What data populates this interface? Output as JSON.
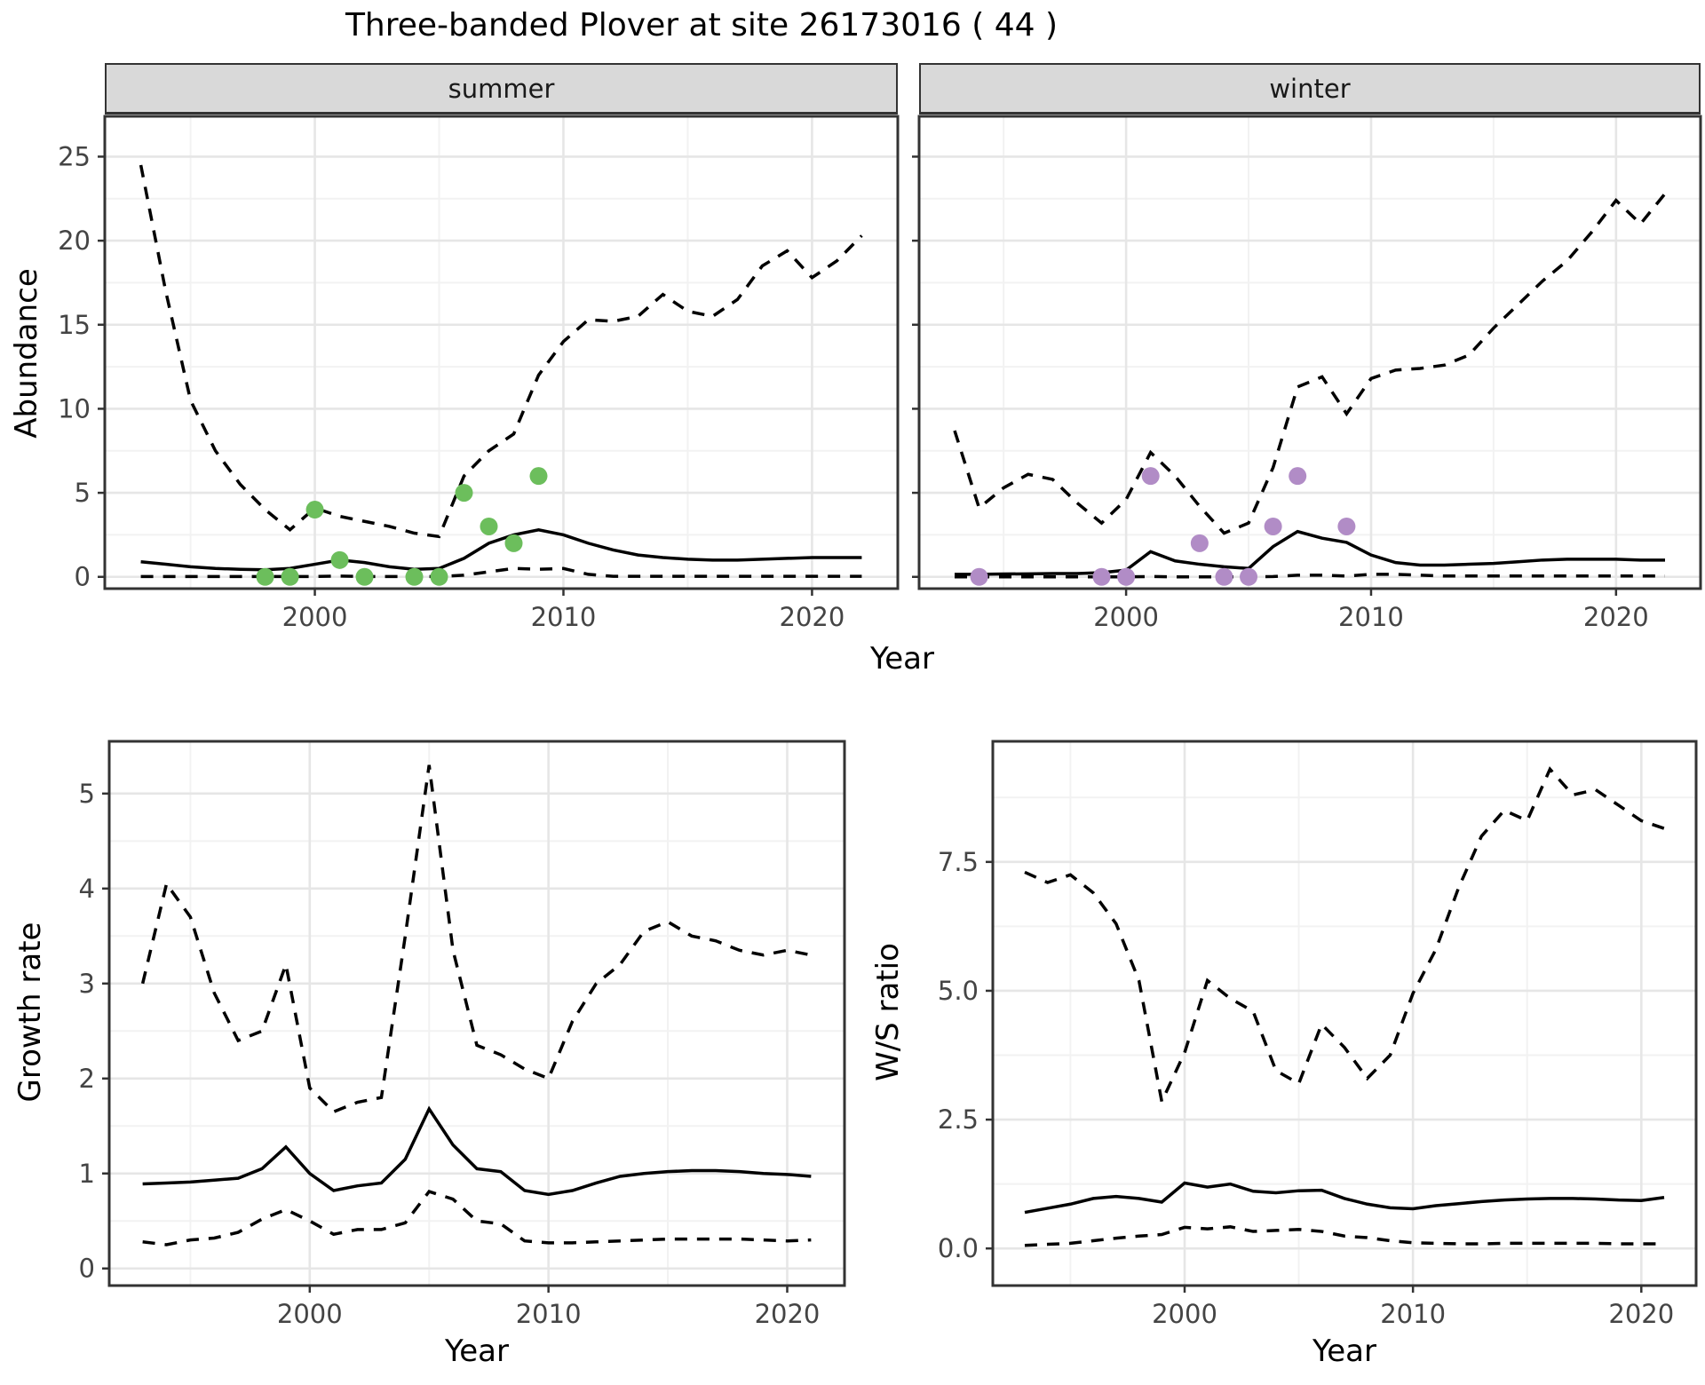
{
  "title": "Three-banded Plover at site 26173016 ( 44 )",
  "shared_x_label": "Year",
  "colors": {
    "summer_points": "#6cbe5c",
    "winter_points": "#b18cc6",
    "line": "#000000",
    "panel_border": "#333333",
    "grid_major": "#e6e6e6",
    "grid_minor": "#f2f2f2",
    "tick_text": "#444444",
    "strip_background": "#d9d9d9"
  },
  "chart_data": [
    {
      "id": "abundance-summer",
      "type": "line",
      "facet_label": "summer",
      "ylabel": "Abundance",
      "xlabel": "Year",
      "legend_position": "none",
      "grid": "on",
      "xlim": [
        1991.55,
        2023.45
      ],
      "ylim": [
        -0.7,
        27.4
      ],
      "x_ticks": [
        {
          "v": 2000,
          "label": "2000"
        },
        {
          "v": 2010,
          "label": "2010"
        },
        {
          "v": 2020,
          "label": "2020"
        }
      ],
      "x_minor": [
        1995,
        2005,
        2015
      ],
      "y_ticks": [
        {
          "v": 0,
          "label": "0"
        },
        {
          "v": 5,
          "label": "5"
        },
        {
          "v": 10,
          "label": "10"
        },
        {
          "v": 15,
          "label": "15"
        },
        {
          "v": 20,
          "label": "20"
        },
        {
          "v": 25,
          "label": "25"
        }
      ],
      "y_minor": [
        2.5,
        7.5,
        12.5,
        17.5,
        22.5
      ],
      "show_y_labels": true,
      "x": [
        1993,
        1994,
        1995,
        1996,
        1997,
        1998,
        1999,
        2000,
        2001,
        2002,
        2003,
        2004,
        2005,
        2006,
        2007,
        2008,
        2009,
        2010,
        2011,
        2012,
        2013,
        2014,
        2015,
        2016,
        2017,
        2018,
        2019,
        2020,
        2021,
        2022
      ],
      "series": [
        {
          "name": "upper-ci",
          "style": "dashed",
          "values": [
            24.5,
            17,
            10.5,
            7.5,
            5.5,
            4.0,
            2.8,
            4.1,
            3.6,
            3.3,
            3.0,
            2.6,
            2.4,
            6.0,
            7.5,
            8.5,
            12.0,
            14.0,
            15.3,
            15.2,
            15.5,
            16.8,
            15.8,
            15.5,
            16.5,
            18.5,
            19.4,
            17.8,
            18.8,
            20.3
          ]
        },
        {
          "name": "lower-ci",
          "style": "dashed",
          "values": [
            0.02,
            0.02,
            0.02,
            0.02,
            0.02,
            0.02,
            0.02,
            0.02,
            0.05,
            0.02,
            0.02,
            0.02,
            0.02,
            0.1,
            0.3,
            0.5,
            0.45,
            0.5,
            0.15,
            0.03,
            0.03,
            0.03,
            0.03,
            0.03,
            0.03,
            0.03,
            0.03,
            0.03,
            0.03,
            0.03
          ]
        },
        {
          "name": "median",
          "style": "solid",
          "values": [
            0.9,
            0.75,
            0.6,
            0.5,
            0.45,
            0.42,
            0.5,
            0.75,
            1.0,
            0.85,
            0.6,
            0.45,
            0.5,
            1.1,
            2.0,
            2.5,
            2.8,
            2.5,
            2.0,
            1.6,
            1.3,
            1.15,
            1.05,
            1.0,
            1.0,
            1.05,
            1.1,
            1.15,
            1.15,
            1.15
          ]
        }
      ],
      "points": {
        "name": "summer-observations",
        "color": "#6cbe5c",
        "data": [
          [
            1998,
            0
          ],
          [
            1999,
            0
          ],
          [
            2000,
            4
          ],
          [
            2001,
            1
          ],
          [
            2002,
            0
          ],
          [
            2004,
            0
          ],
          [
            2005,
            0
          ],
          [
            2006,
            5
          ],
          [
            2007,
            3
          ],
          [
            2008,
            2
          ],
          [
            2009,
            6
          ]
        ]
      }
    },
    {
      "id": "abundance-winter",
      "type": "line",
      "facet_label": "winter",
      "ylabel": "Abundance",
      "xlabel": "Year",
      "legend_position": "none",
      "grid": "on",
      "xlim": [
        1991.55,
        2023.45
      ],
      "ylim": [
        -0.7,
        27.4
      ],
      "x_ticks": [
        {
          "v": 2000,
          "label": "2000"
        },
        {
          "v": 2010,
          "label": "2010"
        },
        {
          "v": 2020,
          "label": "2020"
        }
      ],
      "x_minor": [
        1995,
        2005,
        2015
      ],
      "y_ticks": [
        {
          "v": 0,
          "label": "0"
        },
        {
          "v": 5,
          "label": "5"
        },
        {
          "v": 10,
          "label": "10"
        },
        {
          "v": 15,
          "label": "15"
        },
        {
          "v": 20,
          "label": "20"
        },
        {
          "v": 25,
          "label": "25"
        }
      ],
      "y_minor": [
        2.5,
        7.5,
        12.5,
        17.5,
        22.5
      ],
      "show_y_labels": false,
      "x": [
        1993,
        1994,
        1995,
        1996,
        1997,
        1998,
        1999,
        2000,
        2001,
        2002,
        2003,
        2004,
        2005,
        2006,
        2007,
        2008,
        2009,
        2010,
        2011,
        2012,
        2013,
        2014,
        2015,
        2016,
        2017,
        2018,
        2019,
        2020,
        2021,
        2022
      ],
      "series": [
        {
          "name": "upper-ci",
          "style": "dashed",
          "values": [
            8.7,
            4.1,
            5.3,
            6.1,
            5.8,
            4.4,
            3.2,
            4.6,
            7.4,
            6.0,
            4.2,
            2.6,
            3.2,
            6.5,
            11.3,
            11.9,
            9.7,
            11.8,
            12.3,
            12.4,
            12.6,
            13.2,
            14.8,
            16.2,
            17.6,
            18.8,
            20.5,
            22.4,
            21.0,
            22.8
          ]
        },
        {
          "name": "lower-ci",
          "style": "dashed",
          "values": [
            0,
            0,
            0,
            0,
            0,
            0,
            0,
            0,
            0.02,
            0,
            0,
            0,
            0,
            0.02,
            0.1,
            0.1,
            0.05,
            0.15,
            0.15,
            0.1,
            0.05,
            0.05,
            0.05,
            0.05,
            0.05,
            0.05,
            0.05,
            0.05,
            0.05,
            0.05
          ]
        },
        {
          "name": "median",
          "style": "solid",
          "values": [
            0.15,
            0.15,
            0.17,
            0.18,
            0.2,
            0.2,
            0.25,
            0.4,
            1.5,
            0.95,
            0.75,
            0.6,
            0.5,
            1.8,
            2.7,
            2.3,
            2.05,
            1.3,
            0.85,
            0.7,
            0.7,
            0.75,
            0.8,
            0.9,
            1.0,
            1.05,
            1.05,
            1.05,
            1.0,
            1.0
          ]
        }
      ],
      "points": {
        "name": "winter-observations",
        "color": "#b18cc6",
        "data": [
          [
            1994,
            0
          ],
          [
            1999,
            0
          ],
          [
            2000,
            0
          ],
          [
            2001,
            6
          ],
          [
            2003,
            2
          ],
          [
            2004,
            0
          ],
          [
            2005,
            0
          ],
          [
            2006,
            3
          ],
          [
            2007,
            6
          ],
          [
            2009,
            3
          ]
        ]
      }
    },
    {
      "id": "growth-rate",
      "type": "line",
      "facet_label": "",
      "ylabel": "Growth rate",
      "xlabel": "Year",
      "legend_position": "none",
      "grid": "on",
      "xlim": [
        1991.6,
        2022.4
      ],
      "ylim": [
        -0.18,
        5.55
      ],
      "x_ticks": [
        {
          "v": 2000,
          "label": "2000"
        },
        {
          "v": 2010,
          "label": "2010"
        },
        {
          "v": 2020,
          "label": "2020"
        }
      ],
      "x_minor": [
        1995,
        2005,
        2015
      ],
      "y_ticks": [
        {
          "v": 0,
          "label": "0"
        },
        {
          "v": 1,
          "label": "1"
        },
        {
          "v": 2,
          "label": "2"
        },
        {
          "v": 3,
          "label": "3"
        },
        {
          "v": 4,
          "label": "4"
        },
        {
          "v": 5,
          "label": "5"
        }
      ],
      "y_minor": [
        0.5,
        1.5,
        2.5,
        3.5,
        4.5
      ],
      "show_y_labels": true,
      "x": [
        1993,
        1994,
        1995,
        1996,
        1997,
        1998,
        1999,
        2000,
        2001,
        2002,
        2003,
        2004,
        2005,
        2006,
        2007,
        2008,
        2009,
        2010,
        2011,
        2012,
        2013,
        2014,
        2015,
        2016,
        2017,
        2018,
        2019,
        2020,
        2021
      ],
      "series": [
        {
          "name": "upper-ci",
          "style": "dashed",
          "values": [
            3.0,
            4.05,
            3.7,
            2.9,
            2.4,
            2.5,
            3.2,
            1.9,
            1.65,
            1.75,
            1.8,
            3.5,
            5.3,
            3.35,
            2.35,
            2.25,
            2.1,
            2.0,
            2.6,
            3.0,
            3.2,
            3.55,
            3.65,
            3.5,
            3.45,
            3.35,
            3.3,
            3.35,
            3.3
          ]
        },
        {
          "name": "lower-ci",
          "style": "dashed",
          "values": [
            0.28,
            0.25,
            0.3,
            0.32,
            0.38,
            0.52,
            0.62,
            0.5,
            0.36,
            0.41,
            0.41,
            0.48,
            0.81,
            0.73,
            0.5,
            0.47,
            0.29,
            0.27,
            0.27,
            0.28,
            0.29,
            0.3,
            0.31,
            0.31,
            0.31,
            0.31,
            0.3,
            0.29,
            0.3
          ]
        },
        {
          "name": "median",
          "style": "solid",
          "values": [
            0.89,
            0.9,
            0.91,
            0.93,
            0.95,
            1.05,
            1.28,
            1.0,
            0.82,
            0.87,
            0.9,
            1.15,
            1.68,
            1.3,
            1.05,
            1.02,
            0.82,
            0.78,
            0.82,
            0.9,
            0.97,
            1.0,
            1.02,
            1.03,
            1.03,
            1.02,
            1.0,
            0.99,
            0.97
          ]
        }
      ],
      "points": null
    },
    {
      "id": "ws-ratio",
      "type": "line",
      "facet_label": "",
      "ylabel": "W/S ratio",
      "xlabel": "Year",
      "legend_position": "none",
      "grid": "on",
      "xlim": [
        1991.6,
        2022.4
      ],
      "ylim": [
        -0.72,
        9.84
      ],
      "x_ticks": [
        {
          "v": 2000,
          "label": "2000"
        },
        {
          "v": 2010,
          "label": "2010"
        },
        {
          "v": 2020,
          "label": "2020"
        }
      ],
      "x_minor": [
        1995,
        2005,
        2015
      ],
      "y_ticks": [
        {
          "v": 0,
          "label": "0.0"
        },
        {
          "v": 2.5,
          "label": "2.5"
        },
        {
          "v": 5,
          "label": "5.0"
        },
        {
          "v": 7.5,
          "label": "7.5"
        }
      ],
      "y_minor": [
        1.25,
        3.75,
        6.25,
        8.75
      ],
      "show_y_labels": true,
      "x": [
        1993,
        1994,
        1995,
        1996,
        1997,
        1998,
        1999,
        2000,
        2001,
        2002,
        2003,
        2004,
        2005,
        2006,
        2007,
        2008,
        2009,
        2010,
        2011,
        2012,
        2013,
        2014,
        2015,
        2016,
        2017,
        2018,
        2019,
        2020,
        2021
      ],
      "series": [
        {
          "name": "upper-ci",
          "style": "dashed",
          "values": [
            7.3,
            7.1,
            7.25,
            6.9,
            6.3,
            5.2,
            2.85,
            3.8,
            5.2,
            4.85,
            4.6,
            3.45,
            3.2,
            4.35,
            3.9,
            3.3,
            3.75,
            4.95,
            5.8,
            7.0,
            8.0,
            8.5,
            8.3,
            9.3,
            8.8,
            8.9,
            8.6,
            8.3,
            8.15
          ]
        },
        {
          "name": "lower-ci",
          "style": "dashed",
          "values": [
            0.06,
            0.08,
            0.1,
            0.15,
            0.2,
            0.24,
            0.27,
            0.41,
            0.38,
            0.42,
            0.33,
            0.35,
            0.37,
            0.33,
            0.24,
            0.21,
            0.15,
            0.11,
            0.1,
            0.09,
            0.09,
            0.1,
            0.1,
            0.1,
            0.1,
            0.1,
            0.09,
            0.09,
            0.09
          ]
        },
        {
          "name": "median",
          "style": "solid",
          "values": [
            0.7,
            0.78,
            0.86,
            0.97,
            1.01,
            0.97,
            0.9,
            1.27,
            1.19,
            1.25,
            1.11,
            1.08,
            1.12,
            1.13,
            0.97,
            0.86,
            0.79,
            0.77,
            0.83,
            0.87,
            0.91,
            0.94,
            0.96,
            0.97,
            0.97,
            0.96,
            0.94,
            0.93,
            0.99
          ]
        }
      ],
      "points": null
    }
  ]
}
